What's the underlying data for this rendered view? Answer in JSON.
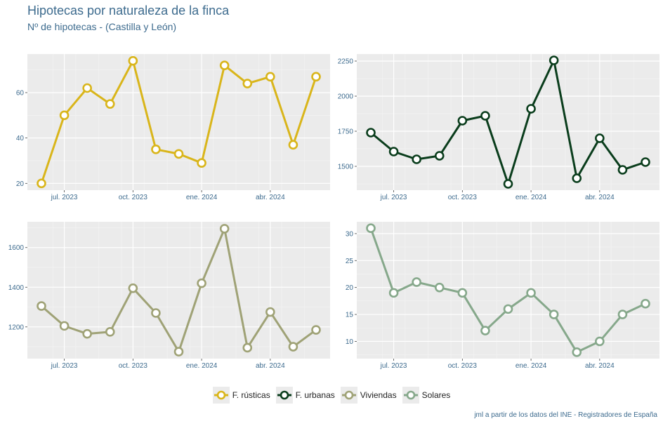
{
  "header": {
    "title": "Hipotecas por naturaleza de la finca",
    "subtitle": "Nº de hipotecas - (Castilla y León)"
  },
  "caption": "jml a partir de los datos del INE - Registradores de España",
  "chart_data": [
    {
      "type": "line",
      "series_name": "F. rústicas",
      "color": "#d9b51a",
      "x": [
        "2023-06",
        "2023-07",
        "2023-08",
        "2023-09",
        "2023-10",
        "2023-11",
        "2023-12",
        "2024-01",
        "2024-02",
        "2024-03",
        "2024-04",
        "2024-05",
        "2024-06"
      ],
      "values": [
        20,
        50,
        62,
        55,
        74,
        35,
        33,
        29,
        72,
        64,
        67,
        37,
        67
      ],
      "yticks": [
        20,
        40,
        60
      ],
      "ylim": [
        17,
        77
      ],
      "xticks": [
        "jul. 2023",
        "oct. 2023",
        "ene. 2024",
        "abr. 2024"
      ]
    },
    {
      "type": "line",
      "series_name": "F. urbanas",
      "color": "#0a3d1c",
      "x": [
        "2023-06",
        "2023-07",
        "2023-08",
        "2023-09",
        "2023-10",
        "2023-11",
        "2023-12",
        "2024-01",
        "2024-02",
        "2024-03",
        "2024-04",
        "2024-05",
        "2024-06"
      ],
      "values": [
        1740,
        1605,
        1550,
        1575,
        1825,
        1860,
        1375,
        1910,
        2255,
        1415,
        1700,
        1475,
        1530
      ],
      "yticks": [
        1500,
        1750,
        2000,
        2250
      ],
      "ylim": [
        1330,
        2300
      ],
      "xticks": [
        "jul. 2023",
        "oct. 2023",
        "ene. 2024",
        "abr. 2024"
      ]
    },
    {
      "type": "line",
      "series_name": "Viviendas",
      "color": "#9fa276",
      "x": [
        "2023-06",
        "2023-07",
        "2023-08",
        "2023-09",
        "2023-10",
        "2023-11",
        "2023-12",
        "2024-01",
        "2024-02",
        "2024-03",
        "2024-04",
        "2024-05",
        "2024-06"
      ],
      "values": [
        1305,
        1205,
        1165,
        1175,
        1395,
        1270,
        1075,
        1420,
        1695,
        1095,
        1275,
        1100,
        1185
      ],
      "yticks": [
        1200,
        1400,
        1600
      ],
      "ylim": [
        1040,
        1730
      ],
      "xticks": [
        "jul. 2023",
        "oct. 2023",
        "ene. 2024",
        "abr. 2024"
      ]
    },
    {
      "type": "line",
      "series_name": "Solares",
      "color": "#86a88b",
      "x": [
        "2023-06",
        "2023-07",
        "2023-08",
        "2023-09",
        "2023-10",
        "2023-11",
        "2023-12",
        "2024-01",
        "2024-02",
        "2024-03",
        "2024-04",
        "2024-05",
        "2024-06"
      ],
      "values": [
        31,
        19,
        21,
        20,
        19,
        12,
        16,
        19,
        15,
        8,
        10,
        15,
        17
      ],
      "yticks": [
        10,
        15,
        20,
        25,
        30
      ],
      "ylim": [
        6.8,
        32.2
      ],
      "xticks": [
        "jul. 2023",
        "oct. 2023",
        "ene. 2024",
        "abr. 2024"
      ]
    }
  ],
  "legend": [
    {
      "label": "F. rústicas",
      "color": "#d9b51a"
    },
    {
      "label": "F. urbanas",
      "color": "#0a3d1c"
    },
    {
      "label": "Viviendas",
      "color": "#9fa276"
    },
    {
      "label": "Solares",
      "color": "#86a88b"
    }
  ]
}
